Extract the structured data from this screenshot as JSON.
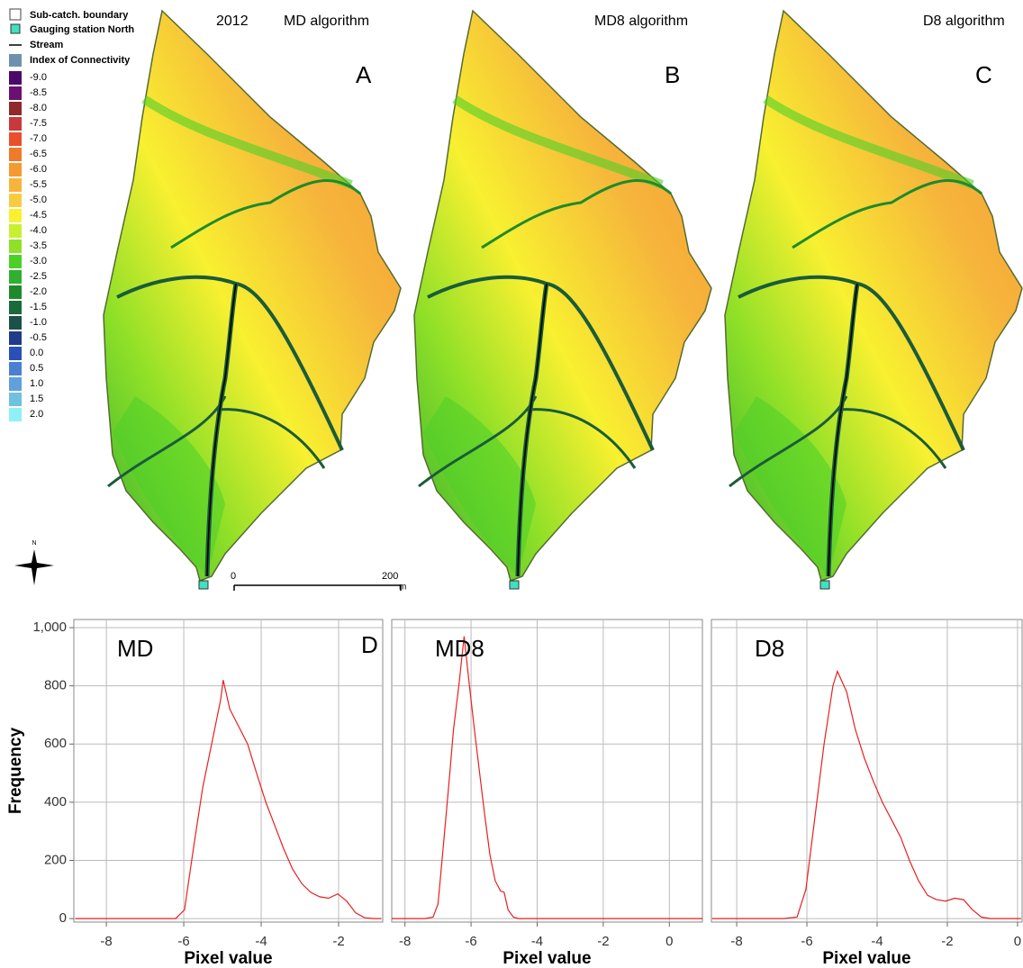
{
  "legend": {
    "items": [
      "Sub-catch. boundary",
      "Gauging station North",
      "Stream",
      "Index of Connectivity"
    ],
    "classes": [
      {
        "label": "-9.0",
        "color": "#4b0a6b"
      },
      {
        "label": "-8.5",
        "color": "#6a1070"
      },
      {
        "label": "-8.0",
        "color": "#8e2a2a"
      },
      {
        "label": "-7.5",
        "color": "#c8383c"
      },
      {
        "label": "-7.0",
        "color": "#e8502c"
      },
      {
        "label": "-6.5",
        "color": "#f07a2a"
      },
      {
        "label": "-6.0",
        "color": "#f49a30"
      },
      {
        "label": "-5.5",
        "color": "#f6b43c"
      },
      {
        "label": "-5.0",
        "color": "#f8cc40"
      },
      {
        "label": "-4.5",
        "color": "#f8f030"
      },
      {
        "label": "-4.0",
        "color": "#c8f030"
      },
      {
        "label": "-3.5",
        "color": "#90e028"
      },
      {
        "label": "-3.0",
        "color": "#4cd028"
      },
      {
        "label": "-2.5",
        "color": "#30b030"
      },
      {
        "label": "-2.0",
        "color": "#1e8a2c"
      },
      {
        "label": "-1.5",
        "color": "#1a6a3a"
      },
      {
        "label": "-1.0",
        "color": "#1c5048"
      },
      {
        "label": "-0.5",
        "color": "#1e3c8a"
      },
      {
        "label": "0.0",
        "color": "#2a50b8"
      },
      {
        "label": "0.5",
        "color": "#4a80d0"
      },
      {
        "label": "1.0",
        "color": "#60a0dc"
      },
      {
        "label": "1.5",
        "color": "#70c0e0"
      },
      {
        "label": "2.0",
        "color": "#90f0f8"
      }
    ]
  },
  "maps": [
    {
      "year": "2012",
      "algorithm": "MD algorithm",
      "letter": "A"
    },
    {
      "algorithm": "MD8 algorithm",
      "letter": "B"
    },
    {
      "algorithm": "D8 algorithm",
      "letter": "C"
    }
  ],
  "scale_bar": {
    "start": 0,
    "end": 200,
    "unit": "m"
  },
  "north": "N",
  "chart_data": [
    {
      "type": "line",
      "annotation": "MD",
      "panel_letter": "D",
      "ylabel": "Frequency",
      "xlabel": "Pixel value",
      "color": "#e82020",
      "x": [
        -8.8,
        -6.21,
        -5.98,
        -5.74,
        -5.51,
        -5.28,
        -5.05,
        -4.98,
        -4.81,
        -4.58,
        -4.35,
        -4.12,
        -3.88,
        -3.65,
        -3.42,
        -3.19,
        -2.95,
        -2.72,
        -2.49,
        -2.26,
        -2.02,
        -1.79,
        -1.56,
        -1.33,
        -1.09,
        -0.9
      ],
      "values": [
        0,
        0,
        30,
        250,
        450,
        600,
        750,
        820,
        720,
        660,
        600,
        500,
        400,
        320,
        240,
        170,
        120,
        90,
        75,
        70,
        85,
        60,
        20,
        3,
        0,
        0
      ],
      "xlim": [
        -8.84,
        -0.86
      ],
      "ylim": [
        -12,
        1028
      ],
      "xticks": [
        -8,
        -6,
        -4,
        -2
      ],
      "yticks": [
        0,
        200,
        400,
        600,
        800,
        {
          "value": 1000,
          "label": "1,000"
        }
      ],
      "y_tick_labels": true,
      "grid": true
    },
    {
      "type": "line",
      "annotation": "MD8",
      "xlabel": "Pixel value",
      "color": "#e82020",
      "x": [
        -8.4,
        -7.39,
        -7.15,
        -7.0,
        -6.84,
        -6.68,
        -6.53,
        -6.37,
        -6.21,
        -6.05,
        -5.9,
        -5.74,
        -5.58,
        -5.43,
        -5.27,
        -5.11,
        -5.0,
        -4.88,
        -4.72,
        -4.56,
        1.0
      ],
      "values": [
        0,
        0,
        5,
        50,
        250,
        450,
        650,
        800,
        970,
        800,
        650,
        500,
        350,
        220,
        130,
        95,
        90,
        30,
        5,
        0,
        0
      ],
      "xlim": [
        -8.4,
        1.0
      ],
      "ylim": [
        -12,
        1028
      ],
      "xticks": [
        -8,
        -6,
        -4,
        -2,
        0
      ],
      "yticks": [
        0,
        200,
        400,
        600,
        800,
        1000
      ],
      "y_tick_labels": false,
      "grid": true
    },
    {
      "type": "line",
      "annotation": "D8",
      "xlabel": "Pixel value",
      "color": "#e82020",
      "x": [
        -8.7,
        -6.67,
        -6.28,
        -6.03,
        -5.77,
        -5.51,
        -5.26,
        -5.13,
        -4.87,
        -4.62,
        -4.36,
        -4.1,
        -3.85,
        -3.59,
        -3.33,
        -3.08,
        -2.82,
        -2.56,
        -2.31,
        -2.05,
        -1.79,
        -1.54,
        -1.28,
        -1.03,
        -0.77,
        0.1
      ],
      "values": [
        0,
        0,
        5,
        100,
        350,
        600,
        800,
        850,
        780,
        650,
        550,
        470,
        400,
        340,
        280,
        200,
        130,
        80,
        65,
        60,
        70,
        65,
        30,
        5,
        0,
        0
      ],
      "xlim": [
        -8.72,
        0.13
      ],
      "ylim": [
        -12,
        1028
      ],
      "xticks": [
        -8,
        -6,
        -4,
        -2,
        0
      ],
      "yticks": [
        0,
        200,
        400,
        600,
        800,
        1000
      ],
      "y_tick_labels": false,
      "grid": true
    }
  ]
}
